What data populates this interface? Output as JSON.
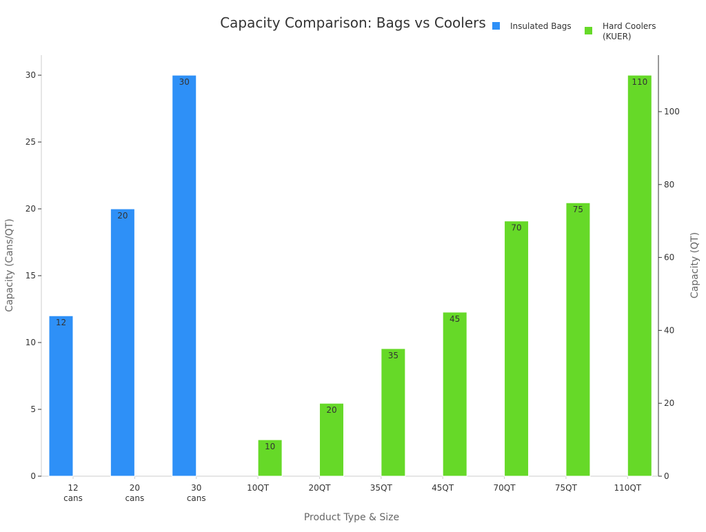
{
  "chart_data": {
    "type": "bar",
    "title": "Capacity Comparison: Bags vs Coolers",
    "xlabel": "Product Type & Size",
    "ylabel": "Capacity (Cans/QT)",
    "ylabel_right": "Capacity (QT)",
    "categories": [
      "12\ncans",
      "20\ncans",
      "30\ncans",
      "10QT",
      "20QT",
      "35QT",
      "45QT",
      "70QT",
      "75QT",
      "110QT"
    ],
    "ylim": [
      0,
      31.5
    ],
    "ylim_right": [
      0,
      115.5
    ],
    "yticks": [
      0,
      5,
      10,
      15,
      20,
      25,
      30
    ],
    "yticks_right": [
      0,
      20,
      40,
      60,
      80,
      100
    ],
    "grid": false,
    "legend_placement": "top-right",
    "series": [
      {
        "name": "Insulated Bags",
        "axis": "left",
        "color": "#2e90f7",
        "values": [
          12,
          20,
          30,
          null,
          null,
          null,
          null,
          null,
          null,
          null
        ]
      },
      {
        "name": "Hard Coolers\n(KUER)",
        "axis": "right",
        "color": "#66d928",
        "values": [
          null,
          null,
          null,
          10,
          20,
          35,
          45,
          70,
          75,
          110
        ]
      }
    ]
  }
}
